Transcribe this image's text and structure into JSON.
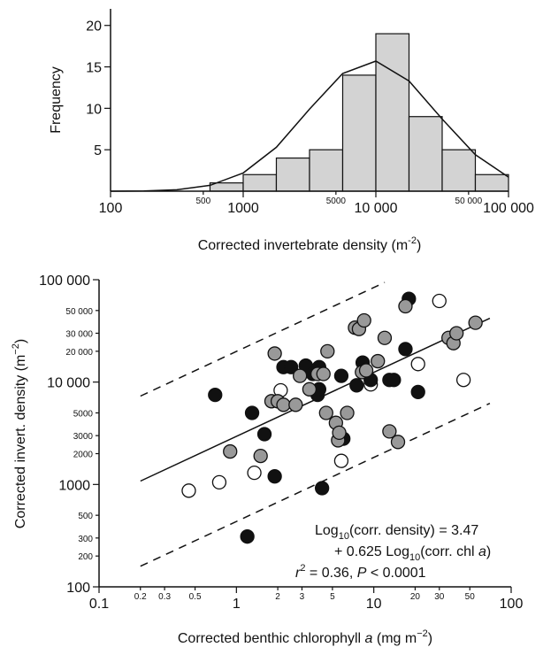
{
  "chart_data": [
    {
      "type": "histogram",
      "xscale": "log",
      "xlim": [
        100,
        100000
      ],
      "ylim": [
        0,
        22
      ],
      "bins": [
        562,
        1000,
        1778,
        3162,
        5623,
        10000,
        17783,
        31623,
        56234,
        100000
      ],
      "counts": [
        1,
        2,
        4,
        5,
        14,
        19,
        9,
        5,
        2
      ],
      "color": "#d3d3d3",
      "curve": {
        "x": [
          100,
          178,
          316,
          562,
          1000,
          1778,
          3162,
          5623,
          10000,
          17783,
          31623,
          56234,
          100000
        ],
        "values": [
          0,
          0.03,
          0.17,
          0.7,
          2.2,
          5.3,
          9.9,
          14.2,
          15.7,
          13.3,
          8.7,
          4.4,
          1.7
        ]
      },
      "xticks": [
        100,
        1000,
        {
          "value": 10000,
          "label": "10 000"
        },
        {
          "value": 100000,
          "label": "100 000"
        }
      ],
      "xticks_minor": [
        500,
        5000,
        {
          "value": 50000,
          "label": "50 000"
        }
      ],
      "yticks": [
        5,
        10,
        15,
        20
      ],
      "ylabel": "Frequency",
      "xlabel": [
        "Corrected invertebrate density (m",
        "-2",
        ")"
      ]
    },
    {
      "type": "scatter",
      "xscale": "log",
      "yscale": "log",
      "xlim": [
        0.1,
        100
      ],
      "ylim": [
        100,
        100000
      ],
      "series": [
        {
          "color": "#ffffff",
          "x": [
            0.45,
            0.75,
            1.35,
            2.1,
            5.8,
            9.5,
            21,
            30,
            45
          ],
          "values": [
            870,
            1050,
            1300,
            8300,
            1700,
            9500,
            15000,
            62000,
            10500
          ]
        },
        {
          "color": "#111111",
          "x": [
            0.7,
            1.2,
            1.3,
            1.6,
            1.9,
            2.2,
            2.5,
            3.2,
            3.6,
            3.9,
            4.0,
            4.0,
            4.2,
            5.8,
            6.0,
            7.5,
            8.3,
            9.5,
            13,
            14,
            17,
            18,
            21
          ],
          "values": [
            7500,
            310,
            5000,
            3100,
            1200,
            14000,
            14000,
            14500,
            12000,
            7500,
            8500,
            14000,
            920,
            11500,
            2800,
            9300,
            15500,
            10500,
            10500,
            10500,
            21000,
            65000,
            8000
          ]
        },
        {
          "color": "#999999",
          "x": [
            0.9,
            1.5,
            1.8,
            1.9,
            2.0,
            2.2,
            2.7,
            2.9,
            3.4,
            3.9,
            4.3,
            4.5,
            4.6,
            5.3,
            5.5,
            5.6,
            6.4,
            7.3,
            7.8,
            8.2,
            8.5,
            8.8,
            10.7,
            12,
            13,
            15,
            17,
            35,
            38,
            40,
            55
          ],
          "values": [
            2100,
            1900,
            6500,
            19000,
            6500,
            6000,
            6000,
            11500,
            8500,
            12000,
            12000,
            5000,
            20000,
            4000,
            2700,
            3200,
            5000,
            34000,
            33000,
            12500,
            40000,
            13000,
            16000,
            27000,
            3300,
            2600,
            55000,
            27000,
            24000,
            30000,
            38000
          ]
        }
      ],
      "lines": [
        {
          "x": [
            0.2,
            70
          ],
          "values": [
            1079,
            42000
          ],
          "dash": false
        },
        {
          "x": [
            0.2,
            12
          ],
          "values": [
            7300,
            94000
          ],
          "dash": true
        },
        {
          "x": [
            0.2,
            70
          ],
          "values": [
            159,
            6200
          ],
          "dash": true
        }
      ],
      "xticks": [
        0.1,
        1,
        10,
        100
      ],
      "xticks_minor": [
        0.2,
        0.3,
        0.5,
        2,
        3,
        5,
        20,
        30,
        50
      ],
      "yticks": [
        100,
        1000,
        {
          "value": 10000,
          "label": "10 000"
        },
        {
          "value": 100000,
          "label": "100 000"
        }
      ],
      "yticks_minor": [
        200,
        300,
        500,
        2000,
        3000,
        5000,
        {
          "value": 20000,
          "label": "20 000"
        },
        {
          "value": 30000,
          "label": "30 000"
        },
        {
          "value": 50000,
          "label": "50 000"
        }
      ],
      "xlabel": [
        "Corrected benthic chlorophyll ",
        "a",
        " (mg m",
        "−2",
        ")"
      ],
      "ylabel": [
        "Corrected invert. density (m",
        "−2",
        ")"
      ],
      "annotation": [
        [
          "Log",
          "10",
          "(corr. density) = 3.47"
        ],
        [
          "+ 0.625 Log",
          "10",
          "(corr. chl ",
          "a",
          ")"
        ],
        [
          "r",
          "2",
          " = 0.36, ",
          "P",
          " < 0.0001"
        ]
      ]
    }
  ]
}
